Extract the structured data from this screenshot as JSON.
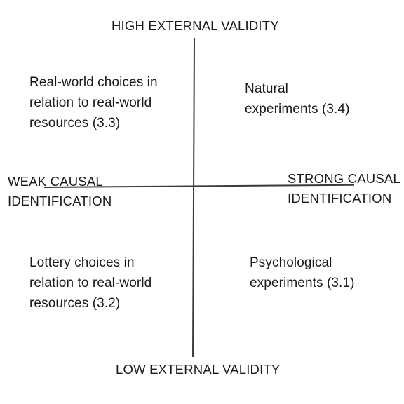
{
  "axes": {
    "top": "HIGH EXTERNAL VALIDITY",
    "bottom": "LOW EXTERNAL VALIDITY",
    "left": [
      "WEAK CAUSAL",
      "IDENTIFICATION"
    ],
    "right": [
      "STRONG CAUSAL",
      "IDENTIFICATION"
    ]
  },
  "quadrants": {
    "top_left": [
      "Real-world choices in",
      "relation to real-world",
      "resources (3.3)"
    ],
    "top_right": [
      "Natural",
      "experiments (3.4)"
    ],
    "bottom_left": [
      "Lottery choices in",
      "relation to real-world",
      "resources (3.2)"
    ],
    "bottom_right": [
      "Psychological",
      "experiments (3.1)"
    ]
  }
}
